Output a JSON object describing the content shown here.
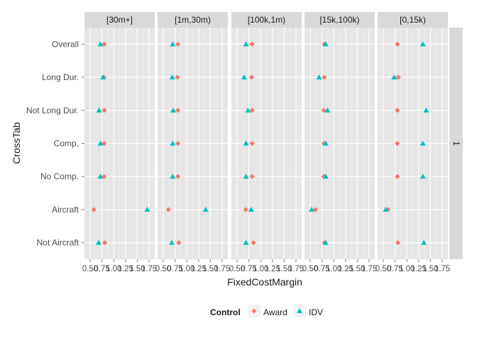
{
  "chart_data": {
    "type": "scatter",
    "xlabel": "FixedCostMargin",
    "ylabel": "CrossTab",
    "xlim": [
      0.5,
      1.75
    ],
    "x_ticks": [
      "0.50",
      "0.75",
      "1.00",
      "1.25",
      "1.50",
      "1.75"
    ],
    "y_categories": [
      "Overall",
      "Long Dur.",
      "Not Long Dur.",
      "Comp.",
      "No Comp.",
      "Aircraft",
      "Not Aircraft"
    ],
    "facets": [
      "[30m+]",
      "[1m,30m)",
      "[100k,1m)",
      "[15k,100k)",
      "[0,15k)"
    ],
    "row_facet": "1",
    "grid": true,
    "legend": {
      "title": "Control",
      "position": "bottom",
      "entries": [
        {
          "label": "Award",
          "shape": "diamond",
          "color": "#F8766D"
        },
        {
          "label": "IDV",
          "shape": "triangle",
          "color": "#00BFC4"
        }
      ]
    },
    "series": [
      {
        "name": "Award",
        "color": "#F8766D",
        "shape": "diamond",
        "values": [
          [
            0.8,
            0.79,
            0.8,
            0.8,
            0.8,
            0.58,
            0.81
          ],
          [
            0.81,
            0.8,
            0.81,
            0.81,
            0.81,
            0.61,
            0.83
          ],
          [
            0.82,
            0.81,
            0.82,
            0.82,
            0.82,
            0.68,
            0.85
          ],
          [
            0.8,
            0.8,
            0.79,
            0.79,
            0.79,
            0.61,
            0.8
          ],
          [
            0.8,
            0.82,
            0.8,
            0.8,
            0.8,
            0.6,
            0.81
          ]
        ]
      },
      {
        "name": "IDV",
        "color": "#00BFC4",
        "shape": "triangle",
        "values": [
          [
            0.72,
            0.77,
            0.69,
            0.72,
            0.72,
            1.71,
            0.68
          ],
          [
            0.7,
            0.69,
            0.71,
            0.7,
            0.7,
            1.4,
            0.68
          ],
          [
            0.69,
            0.65,
            0.73,
            0.69,
            0.69,
            0.8,
            0.69
          ],
          [
            0.83,
            0.69,
            0.87,
            0.83,
            0.83,
            0.53,
            0.83
          ],
          [
            1.34,
            0.73,
            1.41,
            1.34,
            1.34,
            0.55,
            1.36
          ]
        ]
      }
    ]
  }
}
